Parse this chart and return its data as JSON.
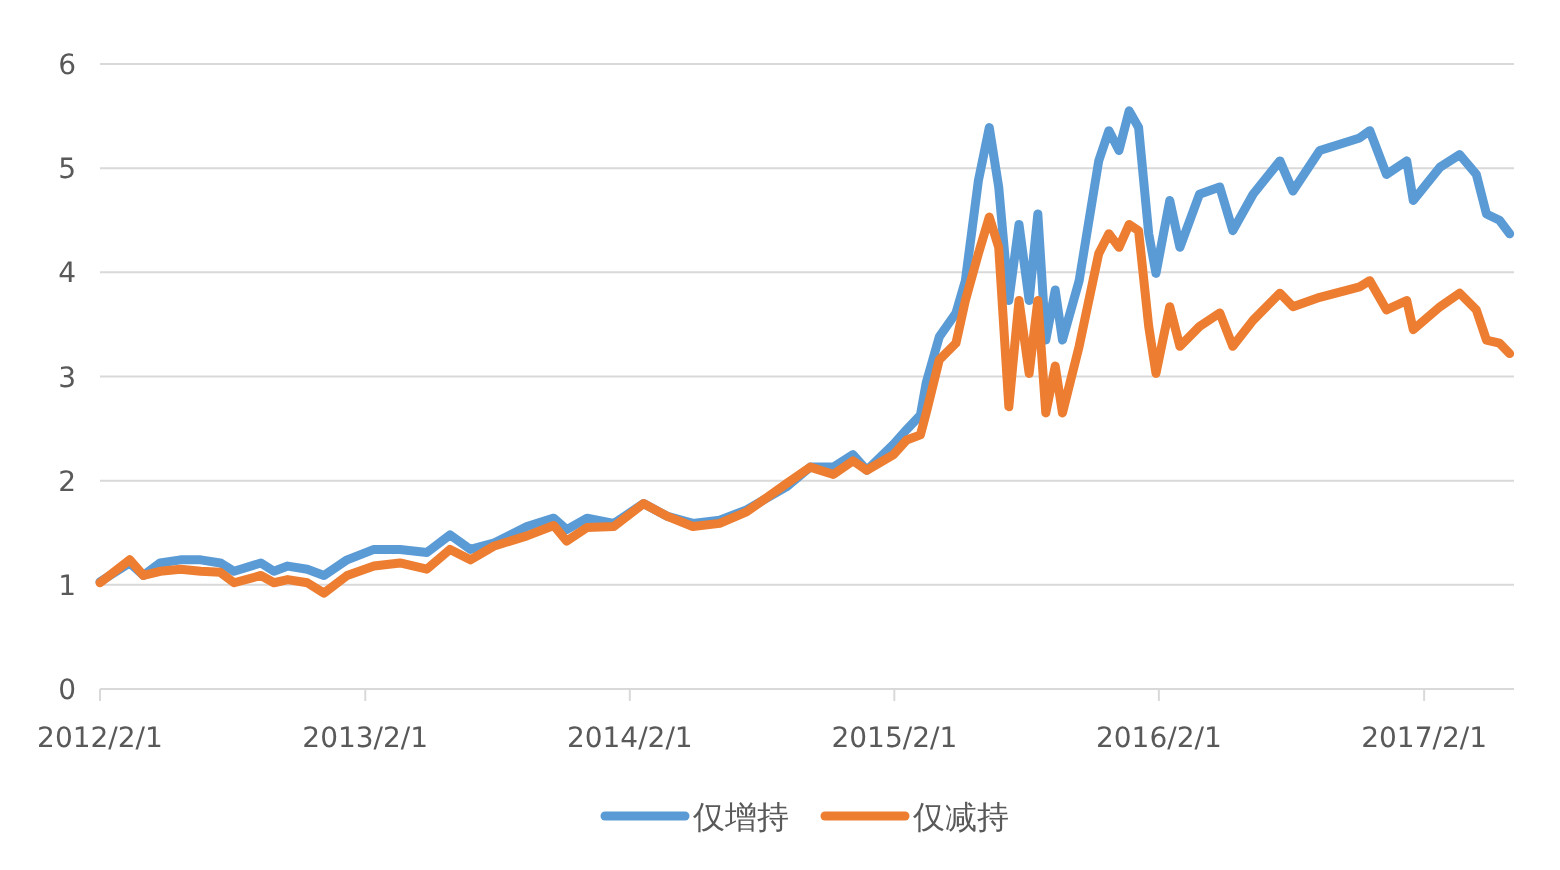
{
  "chart_data": {
    "type": "line",
    "x": [
      "2012-02-01",
      "2012-03-13",
      "2012-04-01",
      "2012-04-24",
      "2012-05-22",
      "2012-06-19",
      "2012-07-16",
      "2012-08-04",
      "2012-09-10",
      "2012-09-28",
      "2012-10-17",
      "2012-11-13",
      "2012-12-06",
      "2013-01-07",
      "2013-02-13",
      "2013-03-21",
      "2013-04-27",
      "2013-05-29",
      "2013-06-26",
      "2013-07-28",
      "2013-09-12",
      "2013-10-19",
      "2013-11-06",
      "2013-12-04",
      "2014-01-10",
      "2014-02-20",
      "2014-03-24",
      "2014-04-29",
      "2014-06-05",
      "2014-07-12",
      "2014-09-05",
      "2014-10-08",
      "2014-11-09",
      "2014-12-06",
      "2014-12-25",
      "2015-01-31",
      "2015-02-18",
      "2015-03-09",
      "2015-03-17",
      "2015-04-04",
      "2015-04-27",
      "2015-05-10",
      "2015-05-28",
      "2015-06-12",
      "2015-06-25",
      "2015-07-09",
      "2015-07-23",
      "2015-08-06",
      "2015-08-18",
      "2015-08-29",
      "2015-09-11",
      "2015-09-21",
      "2015-10-14",
      "2015-11-10",
      "2015-11-24",
      "2015-12-08",
      "2015-12-22",
      "2016-01-04",
      "2016-01-18",
      "2016-01-28",
      "2016-02-16",
      "2016-03-01",
      "2016-03-28",
      "2016-04-25",
      "2016-05-13",
      "2016-06-10",
      "2016-07-17",
      "2016-08-04",
      "2016-09-10",
      "2016-11-04",
      "2016-11-18",
      "2016-12-11",
      "2017-01-08",
      "2017-01-17",
      "2017-02-23",
      "2017-03-22",
      "2017-04-14",
      "2017-04-28",
      "2017-05-16",
      "2017-05-30"
    ],
    "series": [
      {
        "name": "仅增持",
        "color": "#5b9bd5",
        "values": [
          1.03,
          1.21,
          1.09,
          1.21,
          1.24,
          1.24,
          1.21,
          1.13,
          1.21,
          1.13,
          1.18,
          1.15,
          1.09,
          1.24,
          1.34,
          1.34,
          1.31,
          1.48,
          1.34,
          1.4,
          1.56,
          1.64,
          1.53,
          1.64,
          1.59,
          1.78,
          1.66,
          1.59,
          1.62,
          1.72,
          1.94,
          2.13,
          2.13,
          2.25,
          2.1,
          2.35,
          2.49,
          2.63,
          2.94,
          3.38,
          3.61,
          3.92,
          4.88,
          5.39,
          4.82,
          3.73,
          4.46,
          3.73,
          4.56,
          3.35,
          3.83,
          3.35,
          3.92,
          5.07,
          5.36,
          5.17,
          5.55,
          5.39,
          4.37,
          3.99,
          4.69,
          4.24,
          4.75,
          4.82,
          4.4,
          4.75,
          5.07,
          4.78,
          5.17,
          5.29,
          5.36,
          4.94,
          5.07,
          4.69,
          5.01,
          5.13,
          4.94,
          4.56,
          4.5,
          4.37
        ]
      },
      {
        "name": "仅减持",
        "color": "#ed7d31",
        "values": [
          1.02,
          1.24,
          1.09,
          1.13,
          1.15,
          1.13,
          1.12,
          1.02,
          1.09,
          1.02,
          1.05,
          1.02,
          0.92,
          1.09,
          1.18,
          1.21,
          1.15,
          1.34,
          1.24,
          1.37,
          1.47,
          1.57,
          1.42,
          1.55,
          1.56,
          1.78,
          1.66,
          1.56,
          1.59,
          1.7,
          1.97,
          2.13,
          2.06,
          2.19,
          2.1,
          2.25,
          2.39,
          2.44,
          2.65,
          3.16,
          3.32,
          3.73,
          4.18,
          4.53,
          4.24,
          2.71,
          3.73,
          3.03,
          3.73,
          2.65,
          3.1,
          2.65,
          3.29,
          4.18,
          4.37,
          4.24,
          4.46,
          4.4,
          3.48,
          3.03,
          3.67,
          3.29,
          3.48,
          3.61,
          3.29,
          3.54,
          3.8,
          3.67,
          3.76,
          3.86,
          3.92,
          3.64,
          3.73,
          3.45,
          3.67,
          3.8,
          3.64,
          3.35,
          3.32,
          3.22
        ]
      }
    ],
    "xlim": [
      "2012-02-01",
      "2017-06-05"
    ],
    "xticks": [
      {
        "value": "2012-02-01",
        "label": "2012/2/1"
      },
      {
        "value": "2013-02-01",
        "label": "2013/2/1"
      },
      {
        "value": "2014-02-01",
        "label": "2014/2/1"
      },
      {
        "value": "2015-02-01",
        "label": "2015/2/1"
      },
      {
        "value": "2016-02-01",
        "label": "2016/2/1"
      },
      {
        "value": "2017-02-01",
        "label": "2017/2/1"
      }
    ],
    "ylim": [
      0,
      6
    ],
    "yticks": [
      0,
      1,
      2,
      3,
      4,
      5,
      6
    ],
    "grid": "y",
    "legend": "bottom"
  }
}
